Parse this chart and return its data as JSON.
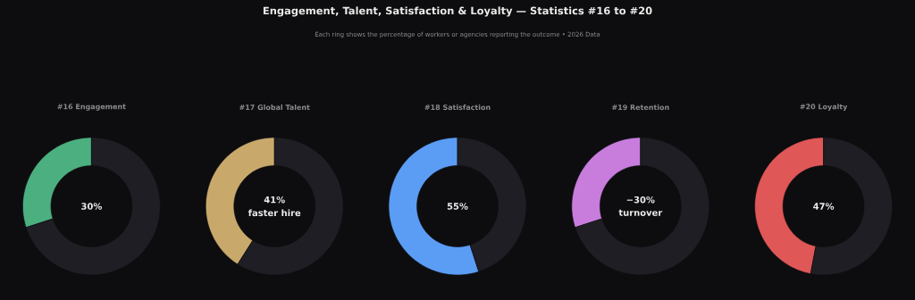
{
  "chart_data": [
    {
      "type": "donut",
      "title": "#16 Engagement",
      "categories": [
        null,
        null
      ],
      "values": [
        30,
        70
      ],
      "colors": [
        "#4caf80",
        "#1f1e24"
      ],
      "annotations": [
        "Engagement, Talent, Satisfaction & Loyalty — Statistics #16 to #20",
        "Each ring shows the percentage of workers or agencies reporting the outcome  •  2026 Data",
        "30%"
      ]
    },
    {
      "type": "donut",
      "title": "#17 Global Talent",
      "categories": [
        null,
        null
      ],
      "values": [
        41,
        59
      ],
      "colors": [
        "#c9a96b",
        "#1f1e24"
      ],
      "annotations": [
        "41%",
        "faster hire"
      ]
    },
    {
      "type": "donut",
      "title": "#18 Satisfaction",
      "categories": [
        null,
        null
      ],
      "values": [
        55,
        45
      ],
      "colors": [
        "#5b9df5",
        "#1f1e24"
      ],
      "annotations": [
        "55%"
      ]
    },
    {
      "type": "donut",
      "title": "#19 Retention",
      "categories": [
        null,
        null
      ],
      "values": [
        30,
        70
      ],
      "colors": [
        "#c87ddd",
        "#1f1e24"
      ],
      "annotations": [
        "−30%",
        "turnover"
      ]
    },
    {
      "type": "donut",
      "title": "#20 Loyalty",
      "categories": [
        null,
        null
      ],
      "values": [
        47,
        53
      ],
      "colors": [
        "#e05757",
        "#1f1e24"
      ],
      "annotations": [
        "47%"
      ]
    }
  ]
}
